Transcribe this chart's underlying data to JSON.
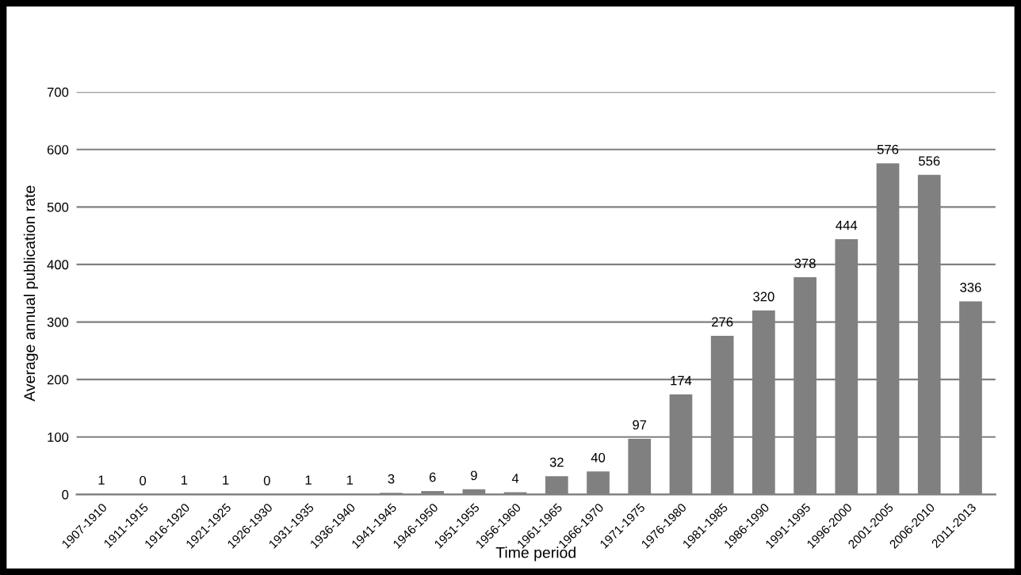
{
  "chart_data": {
    "type": "bar",
    "xlabel": "Time period",
    "ylabel": "Average annual publication rate",
    "categories": [
      "1907-1910",
      "1911-1915",
      "1916-1920",
      "1921-1925",
      "1926-1930",
      "1931-1935",
      "1936-1940",
      "1941-1945",
      "1946-1950",
      "1951-1955",
      "1956-1960",
      "1961-1965",
      "1966-1970",
      "1971-1975",
      "1976-1980",
      "1981-1985",
      "1986-1990",
      "1991-1995",
      "1996-2000",
      "2001-2005",
      "2006-2010",
      "2011-2013"
    ],
    "values": [
      1,
      0,
      1,
      1,
      0,
      1,
      1,
      3,
      6,
      9,
      4,
      32,
      40,
      97,
      174,
      276,
      320,
      378,
      444,
      576,
      556,
      336
    ],
    "color": "#808080",
    "ylim": [
      0,
      700
    ],
    "yticks": [
      0,
      100,
      200,
      300,
      400,
      500,
      600,
      700
    ],
    "grid": "y",
    "data_labels": true,
    "legend": false
  }
}
